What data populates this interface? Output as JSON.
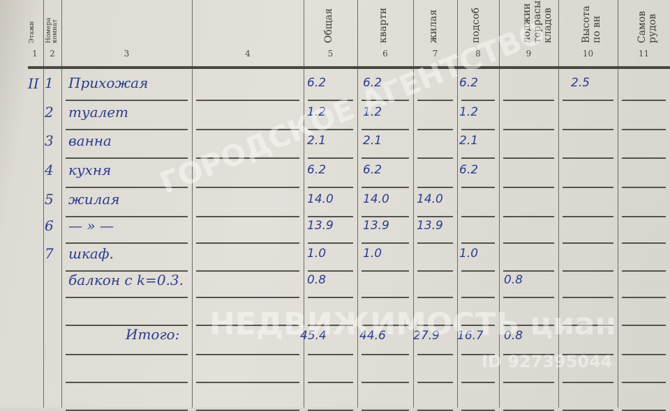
{
  "headers": [
    "Этажи",
    "Номера\nкомнат",
    "",
    "",
    "Общая",
    "кварти",
    "жилая",
    "подсоб",
    "лоджии\nтеррасы\nкладов",
    "Высота\nпо вн",
    "Самов\nрудов"
  ],
  "column_numbers": [
    "1",
    "2",
    "3",
    "4",
    "5",
    "6",
    "7",
    "8",
    "9",
    "10",
    "11"
  ],
  "floor": "II",
  "rows": [
    {
      "no": "1",
      "name": "Прихожая",
      "total": "6.2",
      "apartment": "6.2",
      "living": "",
      "auxiliary": "6.2",
      "loggia": "",
      "height": "2.5"
    },
    {
      "no": "2",
      "name": "туалет",
      "total": "1.2",
      "apartment": "1.2",
      "living": "",
      "auxiliary": "1.2",
      "loggia": "",
      "height": ""
    },
    {
      "no": "3",
      "name": "ванна",
      "total": "2.1",
      "apartment": "2.1",
      "living": "",
      "auxiliary": "2.1",
      "loggia": "",
      "height": ""
    },
    {
      "no": "4",
      "name": "кухня",
      "total": "6.2",
      "apartment": "6.2",
      "living": "",
      "auxiliary": "6.2",
      "loggia": "",
      "height": ""
    },
    {
      "no": "5",
      "name": "жилая",
      "total": "14.0",
      "apartment": "14.0",
      "living": "14.0",
      "auxiliary": "",
      "loggia": "",
      "height": ""
    },
    {
      "no": "6",
      "name": "— » —",
      "total": "13.9",
      "apartment": "13.9",
      "living": "13.9",
      "auxiliary": "",
      "loggia": "",
      "height": ""
    },
    {
      "no": "7",
      "name": "шкаф.",
      "total": "1.0",
      "apartment": "1.0",
      "living": "",
      "auxiliary": "1.0",
      "loggia": "",
      "height": ""
    },
    {
      "no": "",
      "name": "балкон с k=0.3.",
      "total": "0.8",
      "apartment": "",
      "living": "",
      "auxiliary": "",
      "loggia": "0.8",
      "height": ""
    }
  ],
  "totals": {
    "label": "Итого:",
    "total": "45.4",
    "apartment": "44.6",
    "living": "27.9",
    "auxiliary": "16.7",
    "loggia": "0.8"
  },
  "watermark": {
    "top": "ГОРОДСКОЕ АГЕНТСТВО",
    "bottom": "НЕДВИЖИМОСТЬ  циан",
    "id": "ID 927395044"
  }
}
